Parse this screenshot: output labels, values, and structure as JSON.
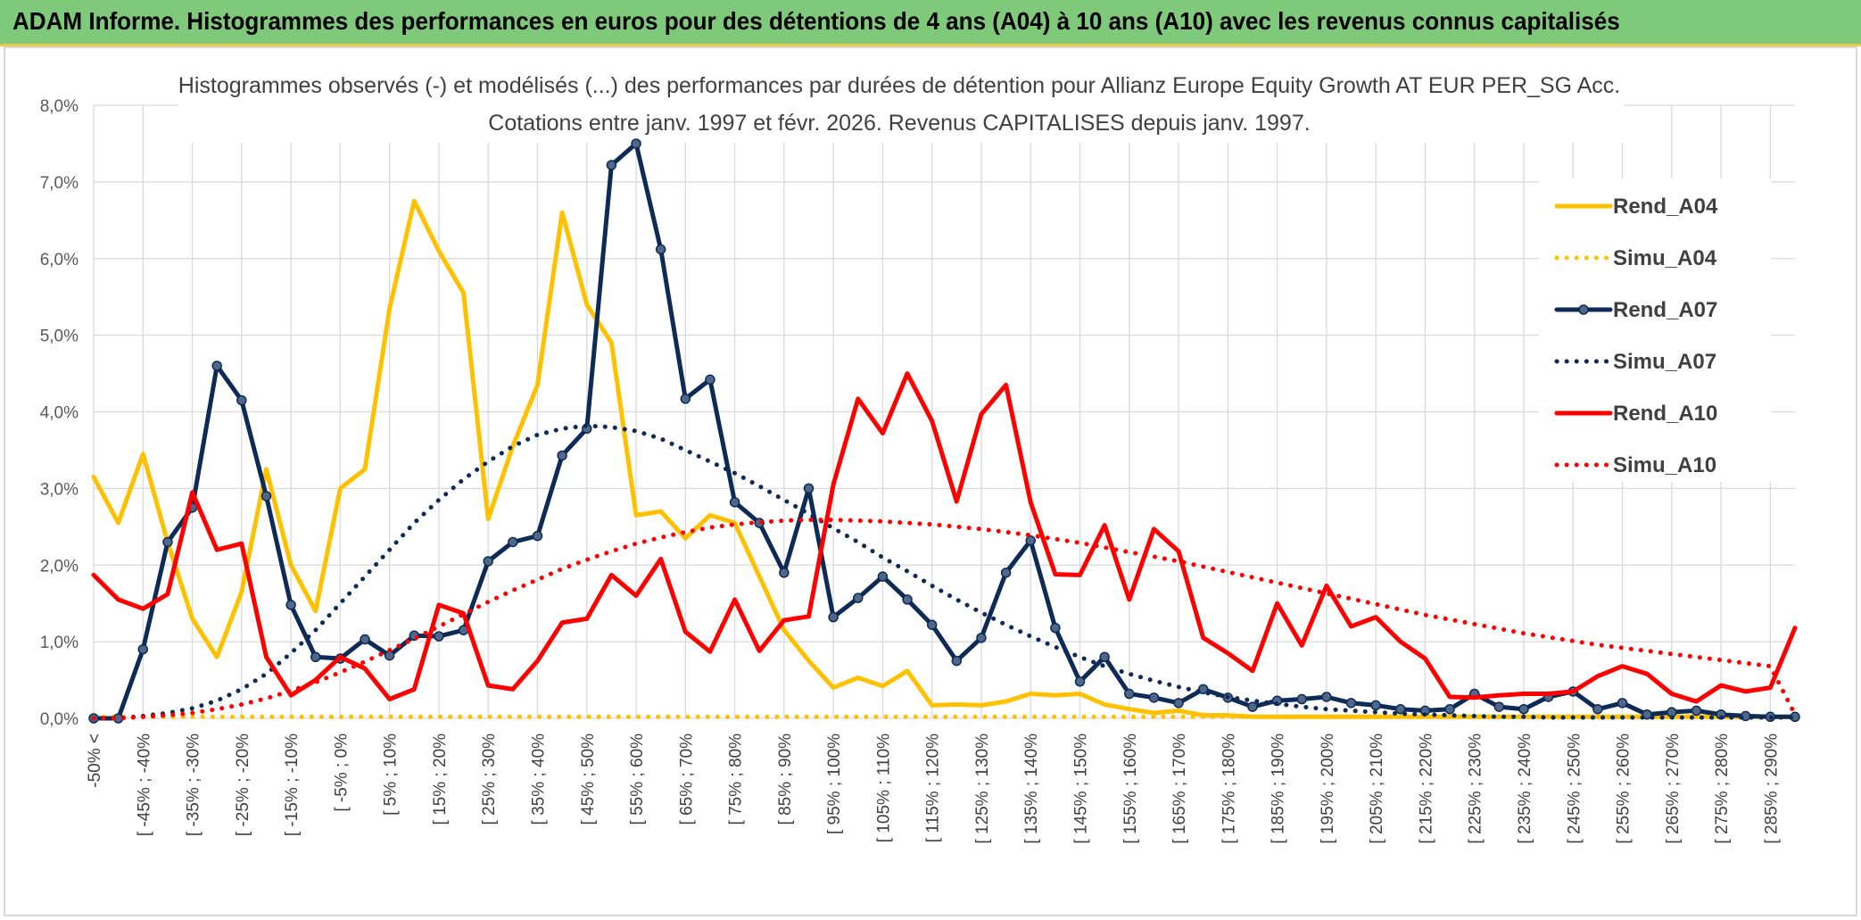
{
  "header": {
    "title": "ADAM Informe. Histogrammes des performances en euros pour des détentions de 4 ans (A04) à 10 ans (A10) avec les revenus connus capitalisés"
  },
  "chart_data": {
    "type": "line",
    "title": "Histogrammes observés (-) et modélisés (...) des performances par durées de détention pour Allianz Europe Equity Growth AT EUR PER_SG Acc.",
    "subtitle": "Cotations entre janv. 1997 et févr. 2026. Revenus CAPITALISES depuis janv. 1997.",
    "grid": true,
    "legend_position": "right",
    "ylim": [
      0,
      8
    ],
    "yticks": [
      "0,0%",
      "1,0%",
      "2,0%",
      "3,0%",
      "4,0%",
      "5,0%",
      "6,0%",
      "7,0%",
      "8,0%"
    ],
    "xtick_labels": [
      "-50% <",
      "[ -45% ; -40%",
      "[ -35% ; -30%",
      "[ -25% ; -20%",
      "[ -15% ; -10%",
      "[ -5% ; 0%",
      "[ 5% ; 10%",
      "[ 15% ; 20%",
      "[ 25% ; 30%",
      "[ 35% ; 40%",
      "[ 45% ; 50%",
      "[ 55% ; 60%",
      "[ 65% ; 70%",
      "[ 75% ; 80%",
      "[ 85% ; 90%",
      "[ 95% ; 100%",
      "[ 105% ; 110%",
      "[ 115% ; 120%",
      "[ 125% ; 130%",
      "[ 135% ; 140%",
      "[ 145% ; 150%",
      "[ 155% ; 160%",
      "[ 165% ; 170%",
      "[ 175% ; 180%",
      "[ 185% ; 190%",
      "[ 195% ; 200%",
      "[ 205% ; 210%",
      "[ 215% ; 220%",
      "[ 225% ; 230%",
      "[ 235% ; 240%",
      "[ 245% ; 250%",
      "[ 255% ; 260%",
      "[ 265% ; 270%",
      "[ 275% ; 280%",
      "[ 285% ; 290%"
    ],
    "n_categories": 70,
    "series": [
      {
        "name": "Rend_A04",
        "color": "#ffc000",
        "style": "solid",
        "markers": false,
        "values": [
          3.15,
          2.55,
          3.45,
          2.3,
          1.3,
          0.8,
          1.65,
          3.25,
          2.0,
          1.4,
          3.0,
          3.25,
          5.35,
          6.75,
          6.1,
          5.55,
          2.6,
          3.55,
          4.35,
          6.6,
          5.4,
          4.9,
          2.65,
          2.7,
          2.35,
          2.65,
          2.55,
          1.85,
          1.15,
          0.75,
          0.4,
          0.53,
          0.42,
          0.62,
          0.17,
          0.18,
          0.17,
          0.22,
          0.32,
          0.3,
          0.32,
          0.18,
          0.12,
          0.07,
          0.1,
          0.04,
          0.04,
          0.02,
          0.02,
          0.02,
          0.02,
          0.02,
          0.02,
          0.02,
          0.02,
          0.02,
          0.02,
          0.02,
          0.02,
          0.02,
          0.02,
          0.02,
          0.02,
          0.02,
          0.02,
          0.02,
          0.02,
          0.02,
          0.02,
          0.02
        ]
      },
      {
        "name": "Simu_A04",
        "color": "#ffc000",
        "style": "dotted",
        "markers": false,
        "values": [
          0.02,
          0.02,
          0.02,
          0.02,
          0.02,
          0.02,
          0.02,
          0.02,
          0.02,
          0.02,
          0.02,
          0.02,
          0.02,
          0.02,
          0.02,
          0.02,
          0.02,
          0.02,
          0.02,
          0.02,
          0.02,
          0.02,
          0.02,
          0.02,
          0.02,
          0.02,
          0.02,
          0.02,
          0.02,
          0.02,
          0.02,
          0.02,
          0.02,
          0.02,
          0.02,
          0.02,
          0.02,
          0.02,
          0.02,
          0.02,
          0.02,
          0.02,
          0.02,
          0.02,
          0.02,
          0.02,
          0.02,
          0.02,
          0.02,
          0.02,
          0.02,
          0.02,
          0.02,
          0.02,
          0.02,
          0.02,
          0.02,
          0.02,
          0.02,
          0.02,
          0.02,
          0.02,
          0.02,
          0.02,
          0.02,
          0.02,
          0.02,
          0.02,
          0.02,
          0.02
        ]
      },
      {
        "name": "Rend_A07",
        "color": "#0e2a57",
        "style": "solid",
        "markers": true,
        "values": [
          0.0,
          0.0,
          0.9,
          2.3,
          2.75,
          4.6,
          4.15,
          2.9,
          1.48,
          0.8,
          0.78,
          1.03,
          0.82,
          1.08,
          1.07,
          1.15,
          2.05,
          2.3,
          2.38,
          3.43,
          3.78,
          7.22,
          7.5,
          6.12,
          4.17,
          4.42,
          2.82,
          2.55,
          1.9,
          3.0,
          1.32,
          1.57,
          1.85,
          1.55,
          1.22,
          0.75,
          1.05,
          1.9,
          2.32,
          1.18,
          0.48,
          0.8,
          0.32,
          0.27,
          0.2,
          0.38,
          0.27,
          0.15,
          0.23,
          0.25,
          0.28,
          0.2,
          0.17,
          0.12,
          0.1,
          0.12,
          0.32,
          0.15,
          0.12,
          0.28,
          0.35,
          0.12,
          0.2,
          0.05,
          0.08,
          0.1,
          0.05,
          0.03,
          0.02,
          0.02
        ]
      },
      {
        "name": "Simu_A07",
        "color": "#0e2a57",
        "style": "dotted",
        "markers": false,
        "values": [
          0.0,
          0.0,
          0.03,
          0.07,
          0.13,
          0.23,
          0.38,
          0.58,
          0.85,
          1.15,
          1.5,
          1.85,
          2.2,
          2.55,
          2.85,
          3.12,
          3.35,
          3.55,
          3.7,
          3.78,
          3.82,
          3.8,
          3.75,
          3.65,
          3.5,
          3.35,
          3.2,
          3.03,
          2.85,
          2.67,
          2.48,
          2.3,
          2.1,
          1.92,
          1.73,
          1.55,
          1.38,
          1.22,
          1.07,
          0.93,
          0.8,
          0.68,
          0.58,
          0.49,
          0.41,
          0.34,
          0.28,
          0.23,
          0.19,
          0.15,
          0.12,
          0.1,
          0.08,
          0.06,
          0.05,
          0.04,
          0.03,
          0.02,
          0.02,
          0.01,
          0.01,
          0.01,
          0.01,
          0.01,
          0.01,
          0.01,
          0.01,
          0.01,
          0.01,
          0.01
        ]
      },
      {
        "name": "Rend_A10",
        "color": "#ff0000",
        "style": "solid",
        "markers": false,
        "values": [
          1.87,
          1.55,
          1.43,
          1.62,
          2.95,
          2.2,
          2.28,
          0.8,
          0.3,
          0.5,
          0.8,
          0.65,
          0.25,
          0.38,
          1.48,
          1.37,
          0.43,
          0.38,
          0.75,
          1.25,
          1.3,
          1.87,
          1.6,
          2.08,
          1.13,
          0.87,
          1.55,
          0.88,
          1.28,
          1.33,
          3.05,
          4.17,
          3.72,
          4.5,
          3.88,
          2.83,
          3.97,
          4.35,
          2.82,
          1.88,
          1.87,
          2.52,
          1.55,
          2.47,
          2.18,
          1.05,
          0.85,
          0.62,
          1.5,
          0.95,
          1.73,
          1.2,
          1.32,
          1.0,
          0.78,
          0.28,
          0.27,
          0.3,
          0.32,
          0.32,
          0.35,
          0.55,
          0.68,
          0.58,
          0.32,
          0.22,
          0.43,
          0.35,
          0.4,
          1.18
        ]
      },
      {
        "name": "Simu_A10",
        "color": "#ff0000",
        "style": "dotted",
        "markers": false,
        "values": [
          0.0,
          0.0,
          0.02,
          0.04,
          0.07,
          0.12,
          0.18,
          0.26,
          0.36,
          0.47,
          0.6,
          0.74,
          0.89,
          1.04,
          1.2,
          1.36,
          1.52,
          1.67,
          1.81,
          1.95,
          2.07,
          2.18,
          2.28,
          2.36,
          2.43,
          2.49,
          2.53,
          2.56,
          2.58,
          2.59,
          2.59,
          2.58,
          2.57,
          2.55,
          2.53,
          2.5,
          2.47,
          2.43,
          2.39,
          2.34,
          2.29,
          2.23,
          2.17,
          2.11,
          2.05,
          1.98,
          1.91,
          1.84,
          1.77,
          1.7,
          1.63,
          1.56,
          1.49,
          1.42,
          1.35,
          1.29,
          1.23,
          1.17,
          1.11,
          1.06,
          1.01,
          0.96,
          0.92,
          0.88,
          0.84,
          0.8,
          0.76,
          0.72,
          0.68,
          0.05
        ]
      }
    ]
  }
}
